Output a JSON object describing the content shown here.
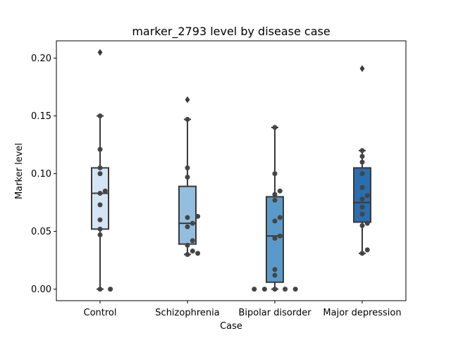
{
  "chart_data": {
    "type": "box",
    "title": "marker_2793 level by disease case",
    "xlabel": "Case",
    "ylabel": "Marker level",
    "ylim": [
      -0.01,
      0.215
    ],
    "yticks": [
      0.0,
      0.05,
      0.1,
      0.15,
      0.2
    ],
    "ytick_labels": [
      "0.00",
      "0.05",
      "0.10",
      "0.15",
      "0.20"
    ],
    "grid": false,
    "categories": [
      "Control",
      "Schizophrenia",
      "Bipolar disorder",
      "Major depression"
    ],
    "colors": [
      "#d6e5f3",
      "#94bedd",
      "#5a9ac8",
      "#2a6ead"
    ],
    "box_edge_color": "#3a3a3a",
    "point_color": "#454545",
    "boxes": [
      {
        "q1": 0.052,
        "median": 0.083,
        "q3": 0.105,
        "whisker_low": 0.0,
        "whisker_high": 0.15,
        "outliers": [
          0.205
        ]
      },
      {
        "q1": 0.039,
        "median": 0.057,
        "q3": 0.089,
        "whisker_low": 0.03,
        "whisker_high": 0.147,
        "outliers": [
          0.164
        ]
      },
      {
        "q1": 0.006,
        "median": 0.046,
        "q3": 0.08,
        "whisker_low": 0.0,
        "whisker_high": 0.14,
        "outliers": []
      },
      {
        "q1": 0.058,
        "median": 0.075,
        "q3": 0.105,
        "whisker_low": 0.031,
        "whisker_high": 0.12,
        "outliers": [
          0.191
        ]
      }
    ],
    "points": [
      [
        0.15,
        0.121,
        0.105,
        0.1,
        0.085,
        0.083,
        0.073,
        0.06,
        0.052,
        0.047,
        0.0,
        0.0
      ],
      [
        0.147,
        0.105,
        0.097,
        0.063,
        0.062,
        0.057,
        0.054,
        0.042,
        0.038,
        0.033,
        0.031,
        0.03
      ],
      [
        0.14,
        0.1,
        0.085,
        0.082,
        0.077,
        0.062,
        0.059,
        0.046,
        0.044,
        0.017,
        0.012,
        0.0,
        0.0,
        0.0,
        0.0,
        0.0
      ],
      [
        0.12,
        0.115,
        0.11,
        0.1,
        0.088,
        0.081,
        0.078,
        0.071,
        0.065,
        0.057,
        0.055,
        0.034,
        0.031
      ]
    ]
  }
}
